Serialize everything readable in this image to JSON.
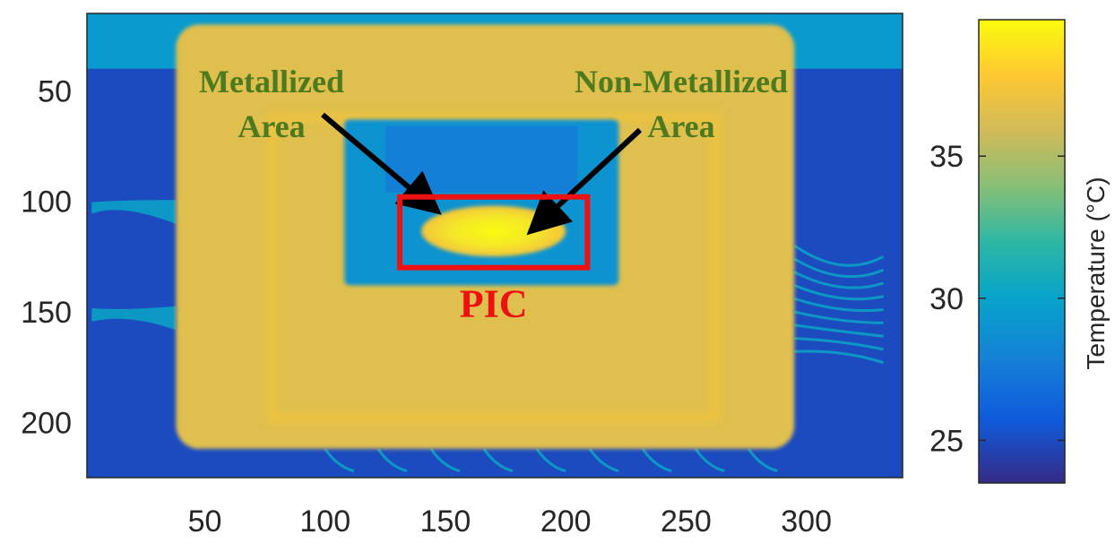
{
  "chart_data": {
    "type": "heatmap",
    "title": "",
    "xlabel": "",
    "ylabel": "",
    "x_ticks": [
      50,
      100,
      150,
      200,
      250,
      300
    ],
    "y_ticks": [
      50,
      100,
      150,
      200
    ],
    "xlim": [
      1,
      340
    ],
    "ylim": [
      15,
      225
    ],
    "grid": false,
    "colormap": "parula",
    "colorbar": {
      "label": "Temperature (°C)",
      "ticks": [
        25,
        30,
        35
      ],
      "range": [
        23.5,
        39.8
      ],
      "position": "right"
    },
    "regions": [
      {
        "part": "background",
        "x": [
          1,
          340
        ],
        "y": [
          15,
          225
        ],
        "temp": 25.0
      },
      {
        "part": "top band",
        "x": [
          1,
          340
        ],
        "y": [
          15,
          40
        ],
        "temp": 29.5
      },
      {
        "part": "package body",
        "x": [
          38,
          295
        ],
        "y": [
          20,
          212
        ],
        "temp": 36.5
      },
      {
        "part": "inner cavity",
        "x": [
          108,
          222
        ],
        "y": [
          63,
          138
        ],
        "temp": 29.0
      },
      {
        "part": "PIC hot spot",
        "x": [
          140,
          200
        ],
        "y": [
          102,
          125
        ],
        "temp": 39.0
      }
    ],
    "annotations": [
      {
        "text_lines": [
          "Metallized",
          "Area"
        ],
        "color": "#4d7a1f",
        "arrow_to": [
          145,
          103
        ]
      },
      {
        "text_lines": [
          "Non-Metallized",
          "Area"
        ],
        "color": "#4d7a1f",
        "arrow_to": [
          187,
          112
        ]
      },
      {
        "text": "PIC",
        "color": "#ee1111",
        "box": {
          "x": [
            131,
            209
          ],
          "y": [
            98,
            130
          ]
        }
      }
    ]
  }
}
